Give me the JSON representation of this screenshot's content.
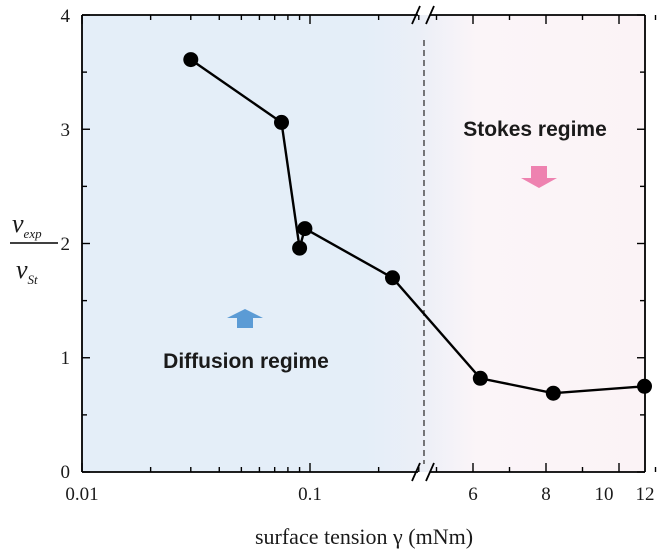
{
  "chart_data": {
    "type": "line",
    "xlabel": "surface tension γ (mNm)",
    "ylabel": {
      "numerator": "v",
      "numerator_sub": "exp",
      "denominator": "v",
      "denominator_sub": "St"
    },
    "ylim": [
      0,
      4
    ],
    "yticks": [
      "0",
      "1",
      "2",
      "3",
      "4"
    ],
    "x_axis": {
      "broken": true,
      "left_segment": {
        "scale": "log",
        "range": [
          0.01,
          0.33
        ],
        "ticks": [
          "0.01",
          "0.1"
        ]
      },
      "right_segment": {
        "scale": "linear",
        "range": [
          4.5,
          12
        ],
        "ticks": [
          "6",
          "8",
          "10",
          "12"
        ]
      }
    },
    "series": [
      {
        "points": [
          {
            "x": 0.03,
            "y": 3.61
          },
          {
            "x": 0.075,
            "y": 3.06
          },
          {
            "x": 0.09,
            "y": 1.96
          },
          {
            "x": 0.095,
            "y": 2.13
          },
          {
            "x": 0.23,
            "y": 1.7
          },
          {
            "x": 6.2,
            "y": 0.82
          },
          {
            "x": 8.2,
            "y": 0.69
          },
          {
            "x": 10.7,
            "y": 0.75
          }
        ],
        "color": "#000000"
      }
    ],
    "regions": [
      {
        "label": "Diffusion regime",
        "side": "left",
        "color": "#e3eef8",
        "arrow_direction": "up",
        "arrow_color": "#5b9bd5"
      },
      {
        "label": "Stokes regime",
        "side": "right",
        "color": "#fcf3f6",
        "arrow_direction": "down",
        "arrow_color": "#ee82b0"
      }
    ],
    "regime_boundary": "dashed vertical line at axis break",
    "grid": false
  }
}
